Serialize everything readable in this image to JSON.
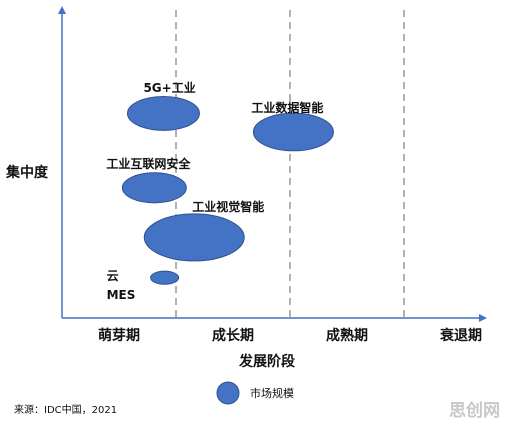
{
  "chart_data": {
    "type": "scatter",
    "x_label": "发展阶段",
    "y_label": "集中度",
    "xlim": [
      0,
      4
    ],
    "ylim": [
      0,
      10
    ],
    "xticks": [
      {
        "value": 0.5,
        "label": "萌芽期"
      },
      {
        "value": 1.5,
        "label": "成长期"
      },
      {
        "value": 2.5,
        "label": "成熟期"
      },
      {
        "value": 3.5,
        "label": "衰退期"
      }
    ],
    "color": "#4472c4",
    "legend": "市场规模",
    "points": [
      {
        "name": "5G+工业",
        "x": 0.89,
        "y": 6.6,
        "size": 36
      },
      {
        "name": "工业数据智能",
        "x": 2.03,
        "y": 6.0,
        "size": 40
      },
      {
        "name": "工业互联网安全",
        "x": 0.81,
        "y": 4.2,
        "size": 32
      },
      {
        "name": "工业视觉智能",
        "x": 1.16,
        "y": 2.6,
        "size": 50
      },
      {
        "name": "云\nMES",
        "x": 0.9,
        "y": 1.3,
        "size": 14
      }
    ],
    "source": "来源：IDC中国，2021",
    "watermark": "思创网"
  }
}
